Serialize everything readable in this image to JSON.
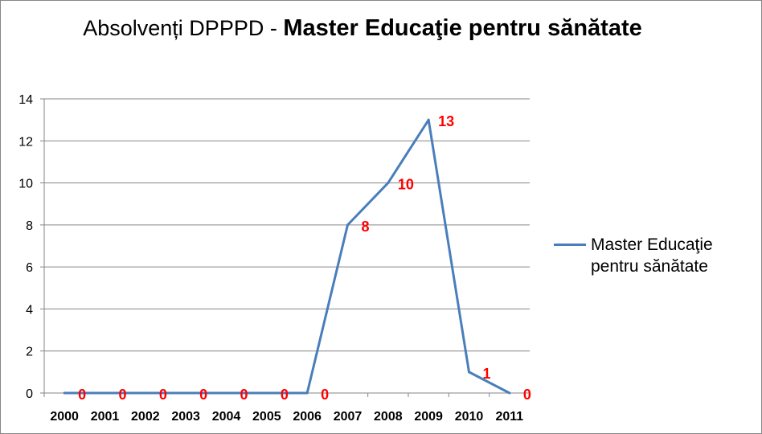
{
  "chart_data": {
    "type": "line",
    "title_part1": "Absolvenți DPPPD - ",
    "title_part2": "Master Educaţie pentru sănătate",
    "categories": [
      "2000",
      "2001",
      "2002",
      "2003",
      "2004",
      "2005",
      "2006",
      "2007",
      "2008",
      "2009",
      "2010",
      "2011"
    ],
    "series": [
      {
        "name": "Master Educaţie pentru sănătate",
        "values": [
          0,
          0,
          0,
          0,
          0,
          0,
          0,
          8,
          10,
          13,
          1,
          0
        ],
        "color": "#4A7EBB"
      }
    ],
    "data_labels": [
      "0",
      "0",
      "0",
      "0",
      "0",
      "0",
      "0",
      "8",
      "10",
      "13",
      "1",
      "0"
    ],
    "data_label_color": "#FF0000",
    "ylim": [
      0,
      14
    ],
    "yticks": [
      "0",
      "2",
      "4",
      "6",
      "8",
      "10",
      "12",
      "14"
    ],
    "grid": true,
    "legend": "right"
  }
}
